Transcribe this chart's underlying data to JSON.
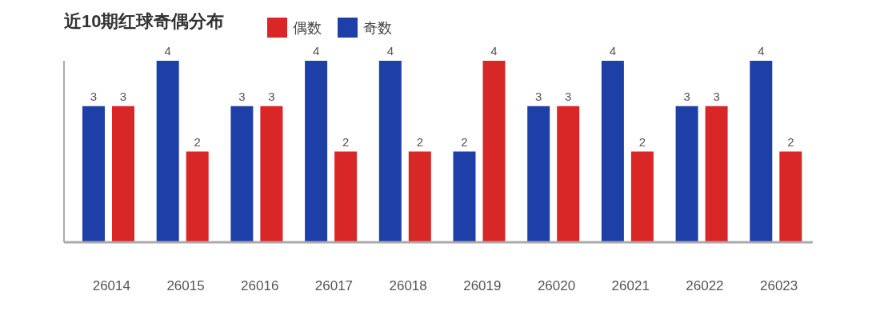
{
  "chart_data": {
    "type": "bar",
    "title": "近10期红球奇偶分布",
    "categories": [
      "26014",
      "26015",
      "26016",
      "26017",
      "26018",
      "26019",
      "26020",
      "26021",
      "26022",
      "26023"
    ],
    "series": [
      {
        "name": "奇数",
        "color": "#1f3fa8",
        "values": [
          3,
          4,
          3,
          4,
          4,
          2,
          3,
          4,
          3,
          4
        ]
      },
      {
        "name": "偶数",
        "color": "#d92626",
        "values": [
          3,
          2,
          3,
          2,
          2,
          4,
          3,
          2,
          3,
          2
        ]
      }
    ],
    "ylim": [
      0,
      4
    ],
    "tick_labels": "x",
    "data_labels": true,
    "legend": "top"
  }
}
